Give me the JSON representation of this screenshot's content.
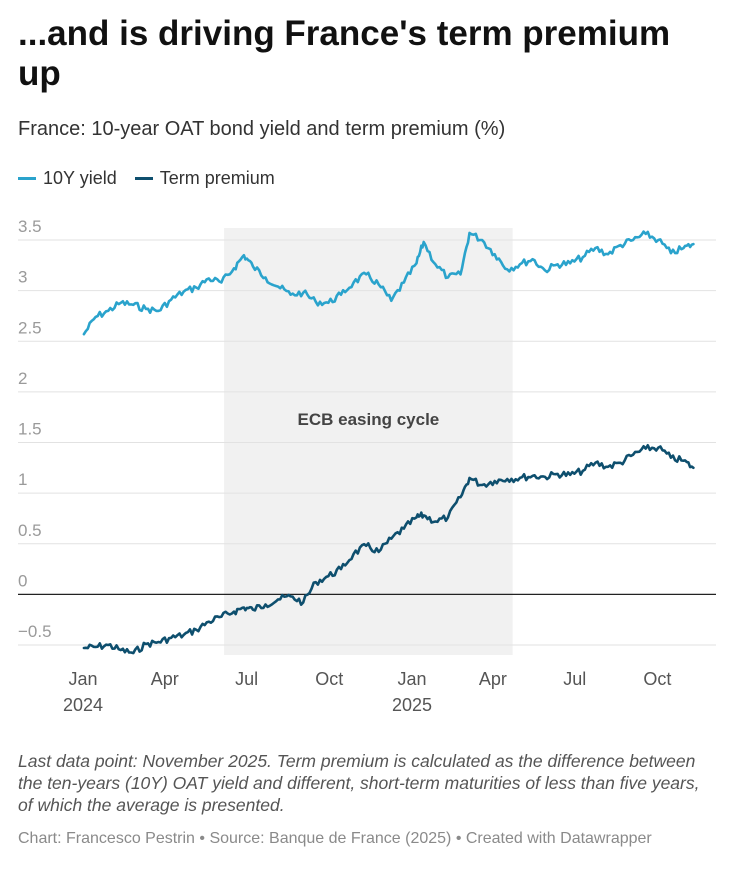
{
  "title": "...and is driving France's term premium up",
  "subtitle": "France: 10-year OAT bond yield and term premium (%)",
  "legend": [
    {
      "label": "10Y yield",
      "color": "#2aa3cc"
    },
    {
      "label": "Term premium",
      "color": "#0e4f6e"
    }
  ],
  "annotation": {
    "label": "ECB easing cycle",
    "start": "2024-06-06",
    "end": "2025-04-23"
  },
  "footer": {
    "notes": "Last data point: November 2025. Term premium is calculated as the difference between the ten-years (10Y) OAT yield and different, short-term maturities of less than five years, of which the average is presented.",
    "source": "Chart: Francesco Pestrin • Source: Banque de France (2025) • Created with Datawrapper"
  },
  "chart_data": {
    "type": "line",
    "title": "...and is driving France's term premium up",
    "subtitle": "France: 10-year OAT bond yield and term premium (%)",
    "ylim": [
      -0.6,
      3.6
    ],
    "y_ticks": [
      3.5,
      3,
      2.5,
      2,
      1.5,
      1,
      0.5,
      0,
      -0.5
    ],
    "y_tick_labels": [
      "3.5",
      "3",
      "2.5",
      "2",
      "1.5",
      "1",
      "0.5",
      "0",
      "−0.5"
    ],
    "xlim": [
      "2024-01-01",
      "2025-11-15"
    ],
    "x_ticks": [
      {
        "date": "2024-01-01",
        "label": "Jan",
        "sublabel": "2024"
      },
      {
        "date": "2024-04-01",
        "label": "Apr",
        "sublabel": ""
      },
      {
        "date": "2024-07-01",
        "label": "Jul",
        "sublabel": ""
      },
      {
        "date": "2024-10-01",
        "label": "Oct",
        "sublabel": ""
      },
      {
        "date": "2025-01-01",
        "label": "Jan",
        "sublabel": "2025"
      },
      {
        "date": "2025-04-01",
        "label": "Apr",
        "sublabel": ""
      },
      {
        "date": "2025-07-01",
        "label": "Jul",
        "sublabel": ""
      },
      {
        "date": "2025-10-01",
        "label": "Oct",
        "sublabel": ""
      }
    ],
    "zero_line": 0,
    "shaded_region": {
      "start": "2024-06-06",
      "end": "2025-04-23",
      "label": "ECB easing cycle"
    },
    "series": [
      {
        "name": "10Y yield",
        "color": "#2aa3cc",
        "points": [
          [
            "2024-01-02",
            2.57
          ],
          [
            "2024-01-15",
            2.74
          ],
          [
            "2024-01-29",
            2.8
          ],
          [
            "2024-02-12",
            2.88
          ],
          [
            "2024-02-26",
            2.86
          ],
          [
            "2024-03-11",
            2.82
          ],
          [
            "2024-03-25",
            2.8
          ],
          [
            "2024-04-08",
            2.91
          ],
          [
            "2024-04-22",
            2.99
          ],
          [
            "2024-05-06",
            3.03
          ],
          [
            "2024-05-20",
            3.12
          ],
          [
            "2024-06-03",
            3.08
          ],
          [
            "2024-06-17",
            3.22
          ],
          [
            "2024-06-28",
            3.35
          ],
          [
            "2024-07-08",
            3.24
          ],
          [
            "2024-07-22",
            3.13
          ],
          [
            "2024-08-05",
            3.04
          ],
          [
            "2024-08-19",
            2.96
          ],
          [
            "2024-09-02",
            2.98
          ],
          [
            "2024-09-16",
            2.89
          ],
          [
            "2024-09-30",
            2.88
          ],
          [
            "2024-10-14",
            2.96
          ],
          [
            "2024-10-28",
            3.08
          ],
          [
            "2024-11-11",
            3.16
          ],
          [
            "2024-11-25",
            3.06
          ],
          [
            "2024-12-09",
            2.9
          ],
          [
            "2024-12-23",
            3.08
          ],
          [
            "2025-01-06",
            3.27
          ],
          [
            "2025-01-14",
            3.48
          ],
          [
            "2025-01-27",
            3.26
          ],
          [
            "2025-02-10",
            3.13
          ],
          [
            "2025-02-24",
            3.16
          ],
          [
            "2025-03-06",
            3.57
          ],
          [
            "2025-03-20",
            3.5
          ],
          [
            "2025-04-03",
            3.36
          ],
          [
            "2025-04-17",
            3.21
          ],
          [
            "2025-05-01",
            3.26
          ],
          [
            "2025-05-15",
            3.31
          ],
          [
            "2025-05-29",
            3.2
          ],
          [
            "2025-06-12",
            3.26
          ],
          [
            "2025-06-26",
            3.27
          ],
          [
            "2025-07-10",
            3.33
          ],
          [
            "2025-07-24",
            3.42
          ],
          [
            "2025-08-07",
            3.36
          ],
          [
            "2025-08-21",
            3.45
          ],
          [
            "2025-09-04",
            3.5
          ],
          [
            "2025-09-18",
            3.56
          ],
          [
            "2025-10-02",
            3.5
          ],
          [
            "2025-10-16",
            3.37
          ],
          [
            "2025-10-30",
            3.42
          ],
          [
            "2025-11-10",
            3.46
          ]
        ]
      },
      {
        "name": "Term premium",
        "color": "#0e4f6e",
        "points": [
          [
            "2024-01-02",
            -0.53
          ],
          [
            "2024-01-15",
            -0.52
          ],
          [
            "2024-01-29",
            -0.5
          ],
          [
            "2024-02-12",
            -0.55
          ],
          [
            "2024-02-26",
            -0.58
          ],
          [
            "2024-03-11",
            -0.49
          ],
          [
            "2024-03-25",
            -0.47
          ],
          [
            "2024-04-08",
            -0.43
          ],
          [
            "2024-04-22",
            -0.4
          ],
          [
            "2024-05-06",
            -0.35
          ],
          [
            "2024-05-20",
            -0.27
          ],
          [
            "2024-06-03",
            -0.22
          ],
          [
            "2024-06-17",
            -0.17
          ],
          [
            "2024-06-28",
            -0.13
          ],
          [
            "2024-07-08",
            -0.15
          ],
          [
            "2024-07-22",
            -0.1
          ],
          [
            "2024-08-05",
            -0.05
          ],
          [
            "2024-08-19",
            -0.02
          ],
          [
            "2024-09-02",
            -0.08
          ],
          [
            "2024-09-16",
            0.12
          ],
          [
            "2024-09-30",
            0.18
          ],
          [
            "2024-10-14",
            0.25
          ],
          [
            "2024-10-28",
            0.4
          ],
          [
            "2024-11-11",
            0.48
          ],
          [
            "2024-11-25",
            0.42
          ],
          [
            "2024-12-09",
            0.55
          ],
          [
            "2024-12-23",
            0.65
          ],
          [
            "2025-01-06",
            0.76
          ],
          [
            "2025-01-14",
            0.78
          ],
          [
            "2025-01-27",
            0.72
          ],
          [
            "2025-02-10",
            0.76
          ],
          [
            "2025-02-24",
            0.96
          ],
          [
            "2025-03-06",
            1.15
          ],
          [
            "2025-03-20",
            1.08
          ],
          [
            "2025-04-03",
            1.12
          ],
          [
            "2025-04-17",
            1.14
          ],
          [
            "2025-05-01",
            1.15
          ],
          [
            "2025-05-15",
            1.17
          ],
          [
            "2025-05-29",
            1.16
          ],
          [
            "2025-06-12",
            1.19
          ],
          [
            "2025-06-26",
            1.18
          ],
          [
            "2025-07-10",
            1.22
          ],
          [
            "2025-07-24",
            1.3
          ],
          [
            "2025-08-07",
            1.26
          ],
          [
            "2025-08-21",
            1.3
          ],
          [
            "2025-09-04",
            1.38
          ],
          [
            "2025-09-18",
            1.44
          ],
          [
            "2025-10-02",
            1.45
          ],
          [
            "2025-10-16",
            1.35
          ],
          [
            "2025-10-30",
            1.32
          ],
          [
            "2025-11-10",
            1.25
          ]
        ]
      }
    ]
  }
}
